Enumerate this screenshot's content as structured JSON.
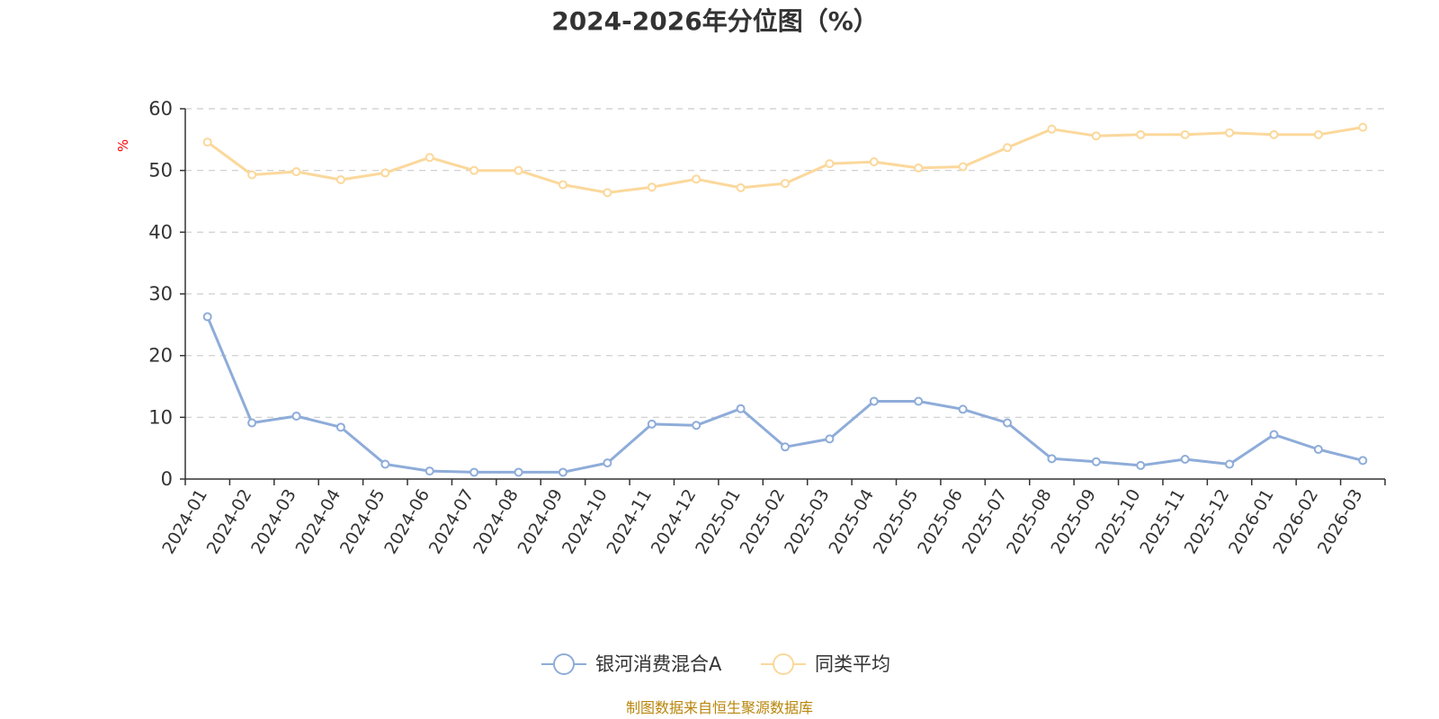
{
  "source_note": "制图数据来自恒生聚源数据库",
  "colors": {
    "series_a": "#8eacd9",
    "series_b": "#fbd89b",
    "grid": "#cccccc",
    "axis": "#333333",
    "unit": "#ff0000",
    "source": "#b8860b"
  },
  "chart_data": {
    "type": "line",
    "title": "2024-2026年分位图（%）",
    "ylabel": "%",
    "xlabel": "",
    "ylim": [
      0,
      60
    ],
    "yticks": [
      0,
      10,
      20,
      30,
      40,
      50,
      60
    ],
    "grid": true,
    "legend_position": "bottom",
    "categories": [
      "2024-01",
      "2024-02",
      "2024-03",
      "2024-04",
      "2024-05",
      "2024-06",
      "2024-07",
      "2024-08",
      "2024-09",
      "2024-10",
      "2024-11",
      "2024-12",
      "2025-01",
      "2025-02",
      "2025-03",
      "2025-04",
      "2025-05",
      "2025-06",
      "2025-07",
      "2025-08",
      "2025-09",
      "2025-10",
      "2025-11",
      "2025-12",
      "2026-01",
      "2026-02",
      "2026-03"
    ],
    "series": [
      {
        "name": "银河消费混合A",
        "color": "#8eacd9",
        "values": [
          26.3,
          9.1,
          10.2,
          8.4,
          2.4,
          1.3,
          1.1,
          1.1,
          1.1,
          2.6,
          8.9,
          8.7,
          11.4,
          5.2,
          6.5,
          12.6,
          12.6,
          11.3,
          9.1,
          3.3,
          2.8,
          2.2,
          3.2,
          2.4,
          7.2,
          4.8,
          3.0
        ]
      },
      {
        "name": "同类平均",
        "color": "#fbd89b",
        "values": [
          54.6,
          49.3,
          49.8,
          48.5,
          49.6,
          52.1,
          50.0,
          50.0,
          47.7,
          46.4,
          47.3,
          48.6,
          47.2,
          47.9,
          51.1,
          51.4,
          50.4,
          50.6,
          53.7,
          56.7,
          55.6,
          55.8,
          55.8,
          56.1,
          55.8,
          55.8,
          57.0
        ]
      }
    ]
  }
}
